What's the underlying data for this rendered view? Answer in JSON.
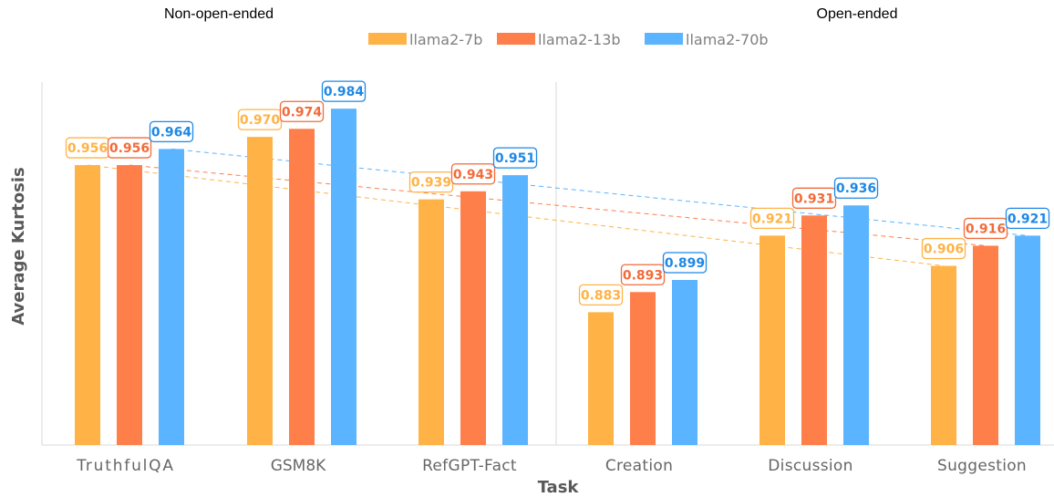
{
  "chart_data": {
    "type": "bar",
    "group_titles": [
      "Non-open-ended",
      "Open-ended"
    ],
    "categories": [
      "TruthfulQA",
      "GSM8K",
      "RefGPT-Fact",
      "Creation",
      "Discussion",
      "Suggestion"
    ],
    "series": [
      {
        "name": "llama2-7b",
        "color": "#FFB347",
        "values": [
          0.956,
          0.97,
          0.939,
          0.883,
          0.921,
          0.906
        ]
      },
      {
        "name": "llama2-13b",
        "color": "#FF7F4A",
        "values": [
          0.956,
          0.974,
          0.943,
          0.893,
          0.931,
          0.916
        ]
      },
      {
        "name": "llama2-70b",
        "color": "#5BB4FF",
        "values": [
          0.964,
          0.984,
          0.951,
          0.899,
          0.936,
          0.921
        ]
      }
    ],
    "data_labels": [
      [
        "0.956",
        "0.970",
        "0.939",
        "0.883",
        "0.921",
        "0.906"
      ],
      [
        "0.956",
        "0.974",
        "0.943",
        "0.893",
        "0.931",
        "0.916"
      ],
      [
        "0.964",
        "0.984",
        "0.951",
        "0.899",
        "0.936",
        "0.921"
      ]
    ],
    "label_colors": [
      "#FFB347",
      "#F26B3A",
      "#1E88E5"
    ],
    "xlabel": "Task",
    "ylabel": "Average  Kurtosis",
    "ylim": [
      0.8,
      1.0
    ],
    "grid": false,
    "legend": "top",
    "trendlines": true
  }
}
